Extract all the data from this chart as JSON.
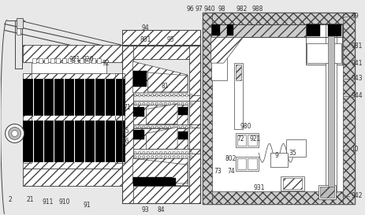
{
  "bg_color": "#e8e8e8",
  "lc": "#444444",
  "blk": "#000000",
  "wht": "#ffffff",
  "gray_hatch": "#cccccc",
  "fs": 5.5
}
